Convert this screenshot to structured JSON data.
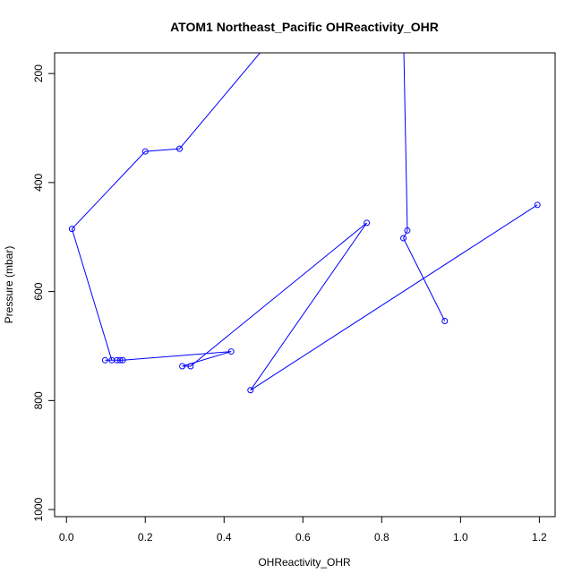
{
  "chart_data": {
    "type": "line",
    "title": "ATOM1 Northeast_Pacific OHReactivity_OHR",
    "xlabel": "OHReactivity_OHR",
    "ylabel": "Pressure (mbar)",
    "xlim": [
      -0.03,
      1.24
    ],
    "ylim": [
      1013,
      162
    ],
    "y_reversed": true,
    "x_ticks": [
      0.0,
      0.2,
      0.4,
      0.6,
      0.8,
      1.0,
      1.2
    ],
    "x_tick_labels": [
      "0.0",
      "0.2",
      "0.4",
      "0.6",
      "0.8",
      "1.0",
      "1.2"
    ],
    "y_ticks": [
      200,
      400,
      600,
      800,
      1000
    ],
    "y_tick_labels": [
      "200",
      "400",
      "600",
      "800",
      "1000"
    ],
    "grid": false,
    "series": [
      {
        "color": "#0000ff",
        "marker": "open-circle",
        "points": [
          {
            "x": 0.96,
            "y": 654
          },
          {
            "x": 0.855,
            "y": 502
          },
          {
            "x": 0.865,
            "y": 488
          },
          {
            "x": 0.855,
            "y": 120,
            "marker": false
          },
          {
            "x": 0.54,
            "y": 120,
            "marker": false
          },
          {
            "x": 0.287,
            "y": 338
          },
          {
            "x": 0.2,
            "y": 343
          },
          {
            "x": 0.014,
            "y": 485
          },
          {
            "x": 0.115,
            "y": 726
          },
          {
            "x": 0.098,
            "y": 726
          },
          {
            "x": 0.128,
            "y": 726
          },
          {
            "x": 0.136,
            "y": 726
          },
          {
            "x": 0.143,
            "y": 726
          },
          {
            "x": 0.418,
            "y": 710
          },
          {
            "x": 0.294,
            "y": 737
          },
          {
            "x": 0.315,
            "y": 737
          },
          {
            "x": 0.762,
            "y": 474
          },
          {
            "x": 0.467,
            "y": 781
          },
          {
            "x": 1.195,
            "y": 441
          }
        ]
      }
    ]
  }
}
